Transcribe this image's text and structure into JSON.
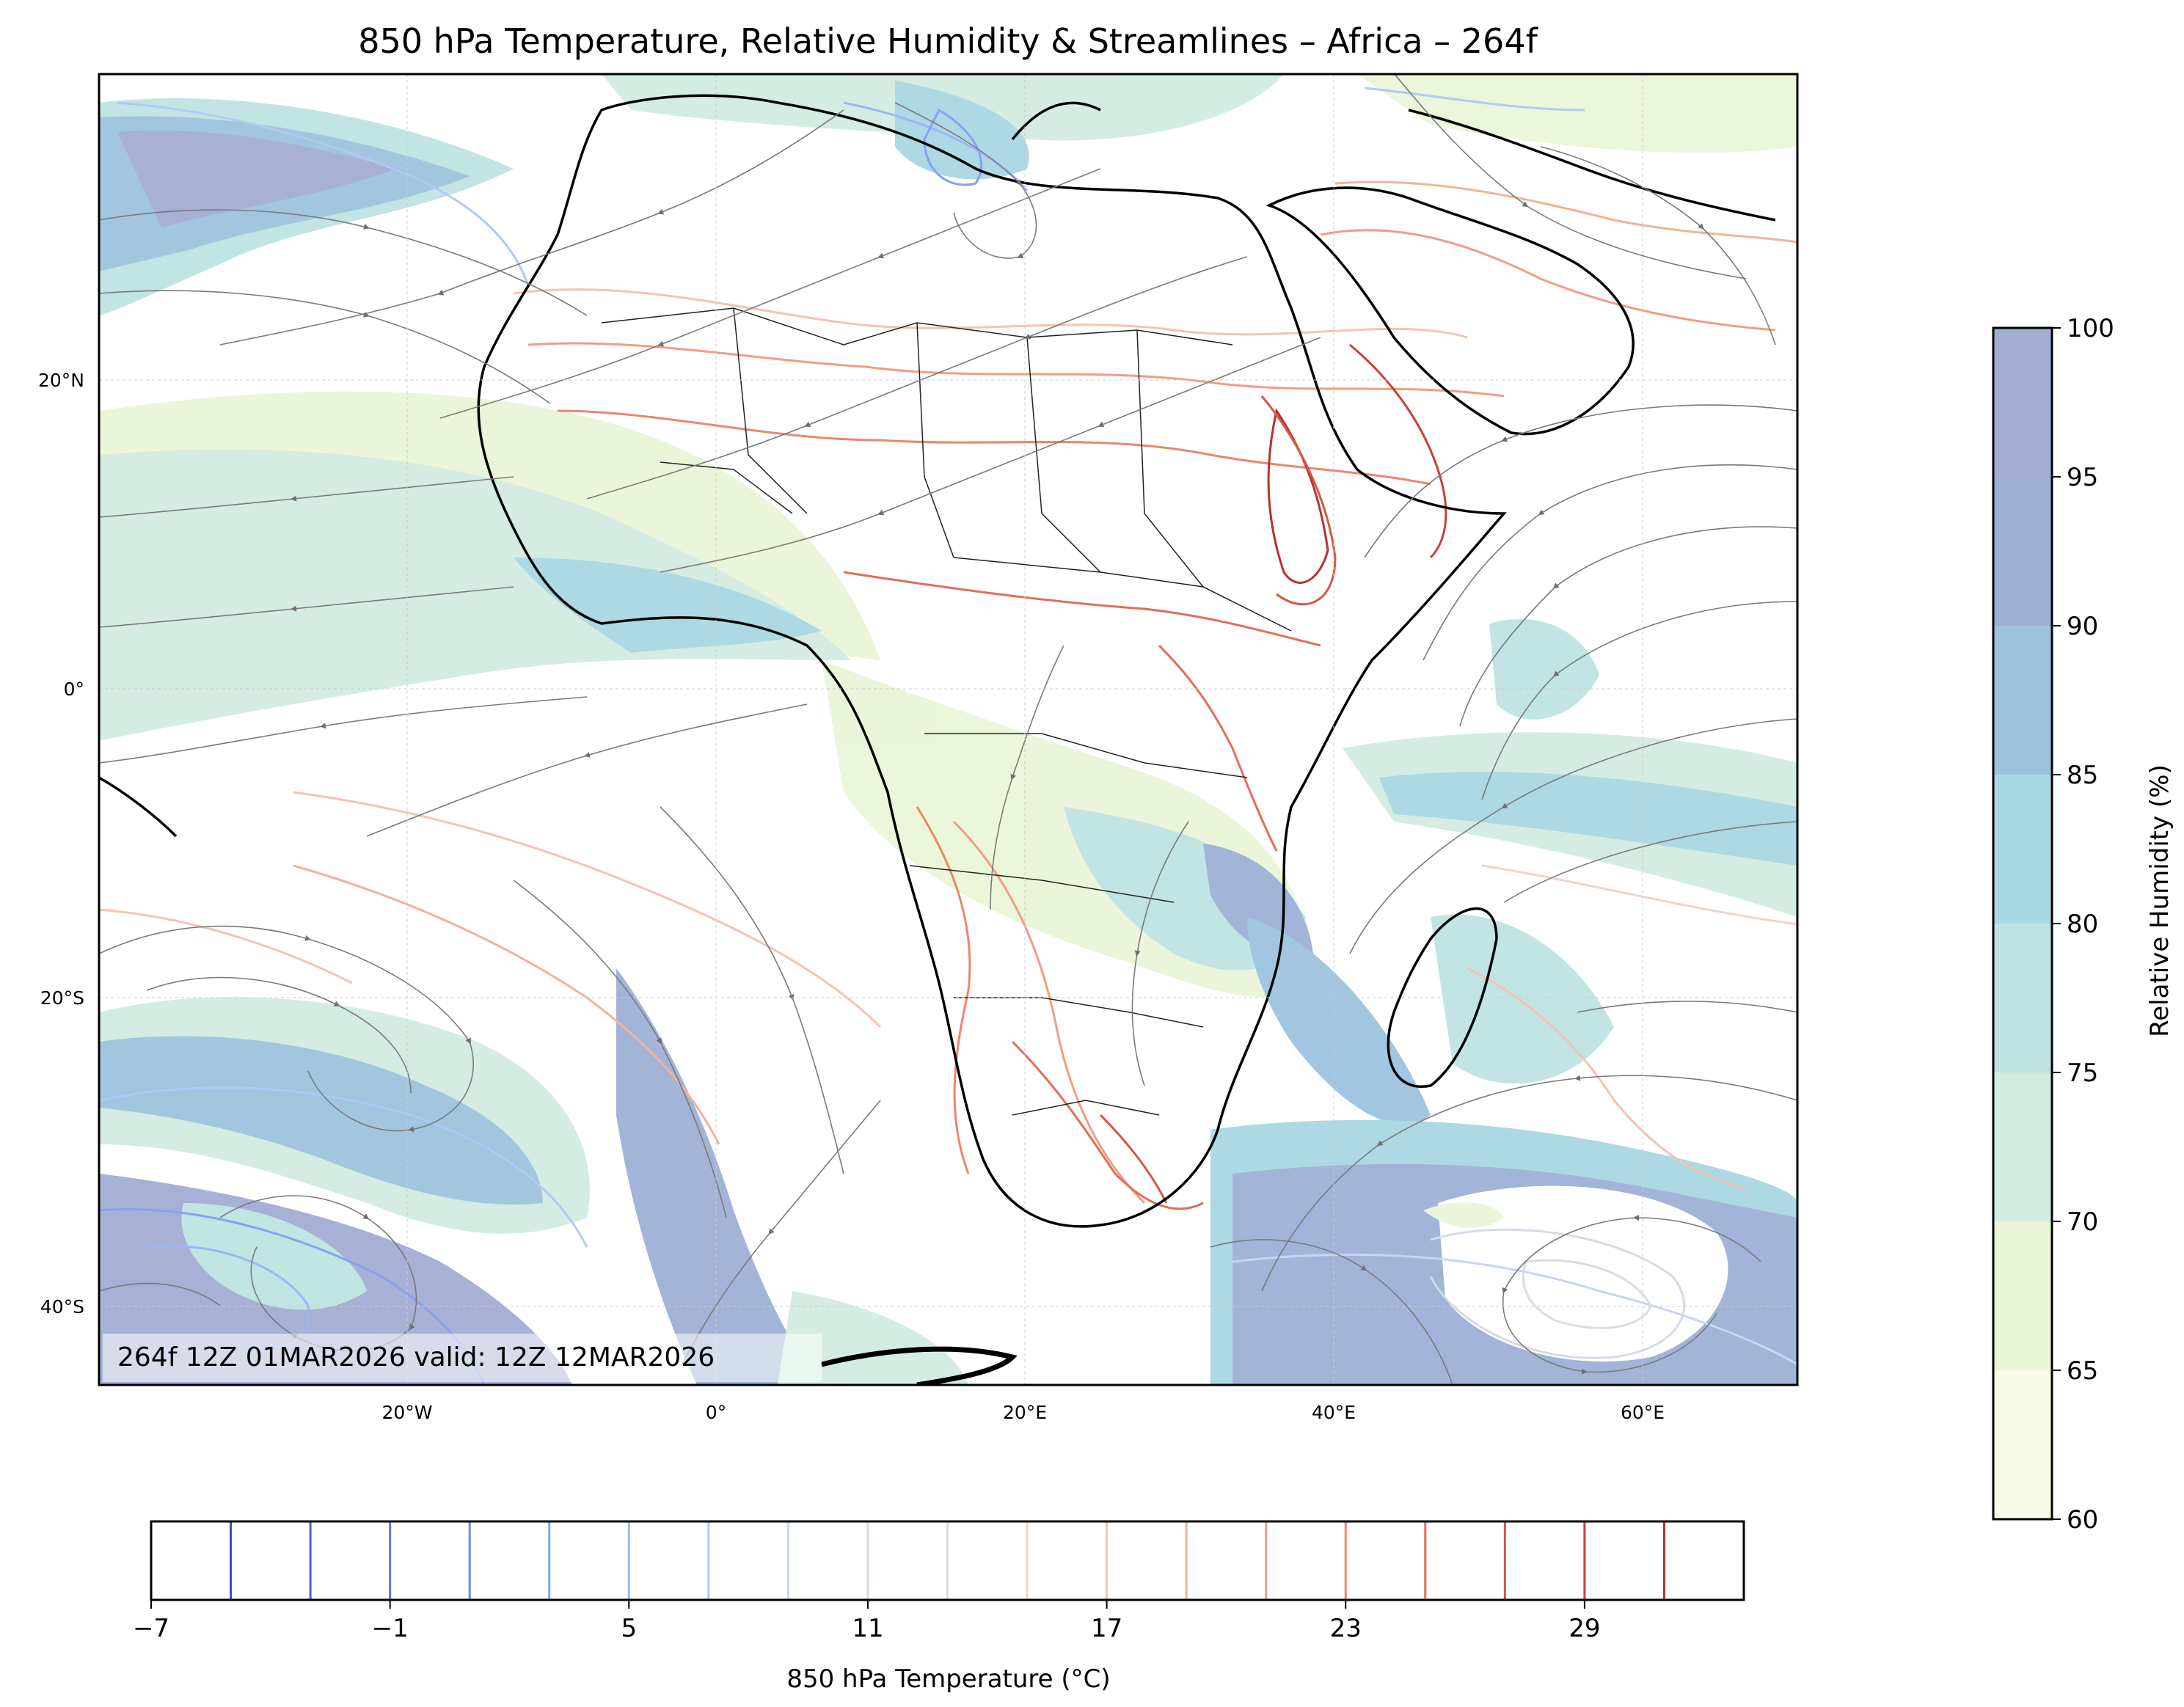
{
  "title": "850 hPa Temperature, Relative Humidity & Streamlines – Africa – 264f",
  "run_stamp": "264f 12Z 01MAR2026 valid: 12Z 12MAR2026",
  "map": {
    "lon_ticks": [
      {
        "lon": -20,
        "label": "20°W"
      },
      {
        "lon": 0,
        "label": "0°"
      },
      {
        "lon": 20,
        "label": "20°E"
      },
      {
        "lon": 40,
        "label": "40°E"
      },
      {
        "lon": 60,
        "label": "60°E"
      }
    ],
    "lat_ticks": [
      {
        "lat": 20,
        "label": "20°N"
      },
      {
        "lat": 0,
        "label": "0°"
      },
      {
        "lat": -20,
        "label": "20°S"
      },
      {
        "lat": -40,
        "label": "40°S"
      }
    ],
    "extent": {
      "lon_min": -40,
      "lon_max": 70,
      "lat_min": -45,
      "lat_max": 40
    },
    "fields": [
      "850 hPa temperature contours",
      "relative humidity shading",
      "streamlines",
      "coastlines",
      "country borders"
    ]
  },
  "rh_colorbar": {
    "label": "Relative Humidity (%)",
    "levels": [
      60,
      65,
      70,
      75,
      80,
      85,
      90,
      95,
      100
    ],
    "tick_labels": [
      "60",
      "65",
      "70",
      "75",
      "80",
      "85",
      "90",
      "95",
      "100"
    ],
    "colors": [
      "#f7fbe8",
      "#eaf5d8",
      "#d2ece0",
      "#bfe3e2",
      "#a8d8e2",
      "#9cc3dd",
      "#9eb0d6",
      "#a3acd3"
    ]
  },
  "temp_colorbar": {
    "label": "850 hPa Temperature (°C)",
    "min": -7,
    "max": 33,
    "tick_values": [
      -7,
      -1,
      5,
      11,
      17,
      23,
      29
    ],
    "tick_labels": [
      "−7",
      "−1",
      "5",
      "11",
      "17",
      "23",
      "29"
    ],
    "contour_levels": [
      -5,
      -3,
      -1,
      1,
      3,
      5,
      7,
      9,
      11,
      13,
      15,
      17,
      19,
      21,
      23,
      25,
      27,
      29,
      31
    ],
    "contour_colors": [
      "#3a4fc4",
      "#4a62d4",
      "#5a78e0",
      "#6e8de8",
      "#86a2ef",
      "#9cb6f4",
      "#b2c8f6",
      "#c7d6f2",
      "#d6dbe6",
      "#dcdcdc",
      "#eed5cc",
      "#f2c4b2",
      "#f3b29a",
      "#f09e82",
      "#ea876a",
      "#e06f55",
      "#d45745",
      "#c84036",
      "#b8312f"
    ]
  }
}
